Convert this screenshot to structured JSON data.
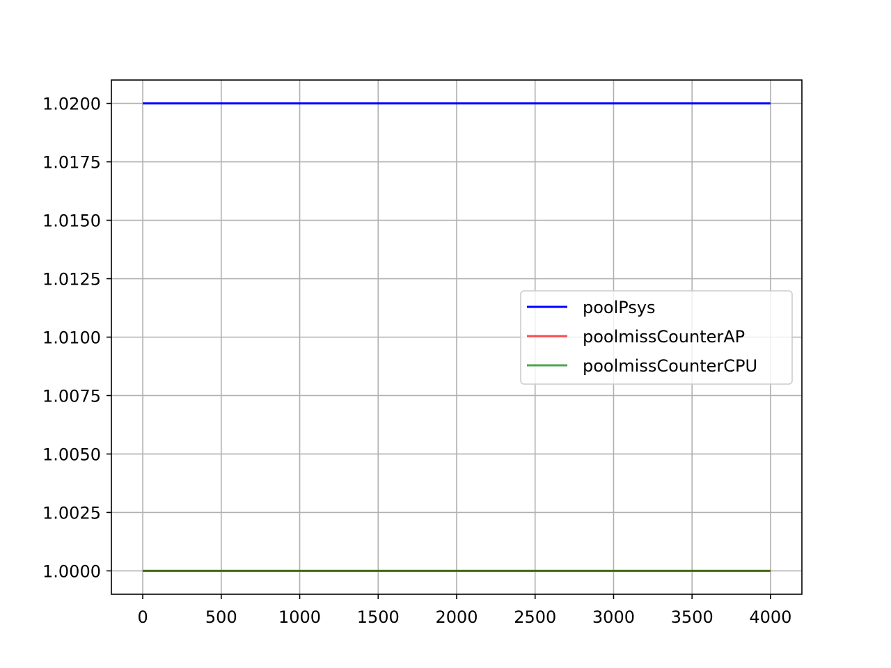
{
  "chart_data": {
    "type": "line",
    "title": "",
    "xlabel": "",
    "ylabel": "",
    "xlim": [
      -200,
      4200
    ],
    "ylim": [
      0.999,
      1.021
    ],
    "x_ticks": [
      0,
      500,
      1000,
      1500,
      2000,
      2500,
      3000,
      3500,
      4000
    ],
    "y_ticks": [
      1.0,
      1.0025,
      1.005,
      1.0075,
      1.01,
      1.0125,
      1.015,
      1.0175,
      1.02
    ],
    "y_tick_decimals": 4,
    "grid": true,
    "legend_position": "center-right",
    "series": [
      {
        "name": "poolPsys",
        "color": "#0000ff",
        "opacity": 1,
        "x": [
          0,
          4000
        ],
        "y": [
          1.02,
          1.02
        ]
      },
      {
        "name": "poolmissCounterAP",
        "color": "#ff0000",
        "opacity": 0.7,
        "x": [
          0,
          4000
        ],
        "y": [
          1.0,
          1.0
        ]
      },
      {
        "name": "poolmissCounterCPU",
        "color": "#008000",
        "opacity": 0.7,
        "x": [
          0,
          4000
        ],
        "y": [
          1.0,
          1.0
        ]
      }
    ]
  }
}
